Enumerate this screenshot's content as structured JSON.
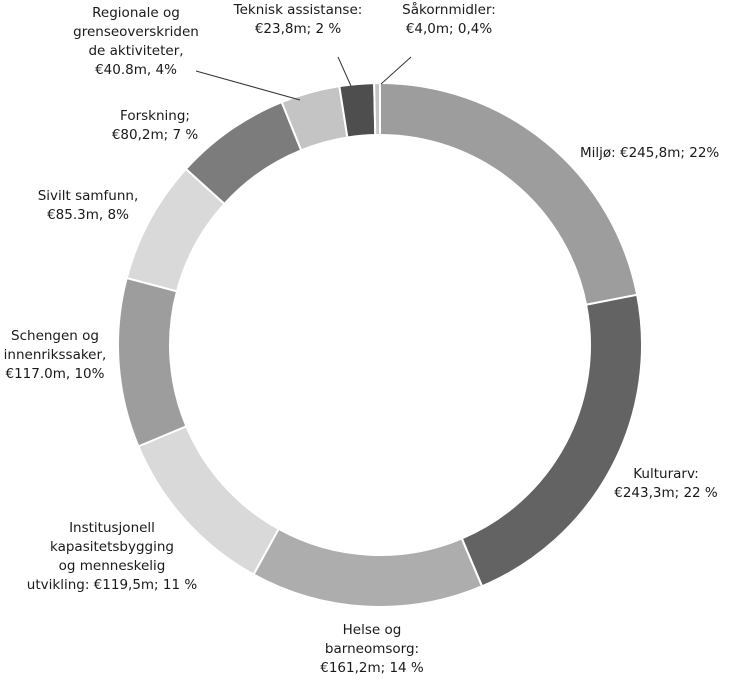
{
  "chart_data": {
    "type": "pie",
    "variant": "donut",
    "title": "",
    "categories": [
      "Miljø",
      "Kulturarv",
      "Helse og barneomsorg",
      "Institusjonell kapasitetsbygging og menneskelig utvikling",
      "Schengen og innenrikssaker",
      "Sivilt samfunn",
      "Forskning",
      "Regionale og grenseoverskriden de aktiviteter",
      "Teknisk assistanse",
      "Såkornmidler"
    ],
    "values": [
      245.8,
      243.3,
      161.2,
      119.5,
      117.0,
      85.3,
      80.2,
      40.8,
      23.8,
      4.0
    ],
    "unit": "€m",
    "colors": [
      "#9d9d9d",
      "#636363",
      "#adadad",
      "#d9d9d9",
      "#9d9d9d",
      "#d9d9d9",
      "#7c7c7c",
      "#c4c4c4",
      "#4e4e4e",
      "#c4c4c4"
    ],
    "labels": [
      [
        "Miljø: €245,8m; 22%"
      ],
      [
        "Kulturarv:",
        "€243,3m; 22 %"
      ],
      [
        "Helse og",
        "barneomsorg:",
        "€161,2m; 14 %"
      ],
      [
        "Institusjonell",
        "kapasitetsbygging",
        "og menneskelig",
        "utvikling: €119,5m; 11 %"
      ],
      [
        "Schengen og",
        "innenrikssaker,",
        "€117.0m, 10%"
      ],
      [
        "Sivilt  samfunn,",
        "€85.3m, 8%"
      ],
      [
        "Forskning;",
        "€80,2m; 7 %"
      ],
      [
        "Regionale og",
        "grenseoverskriden",
        "de aktiviteter,",
        "€40.8m, 4%"
      ],
      [
        "Teknisk assistanse:",
        "€23,8m; 2 %"
      ],
      [
        "Såkornmidler:",
        "€4,0m; 0,4%"
      ]
    ],
    "legend": "none"
  }
}
